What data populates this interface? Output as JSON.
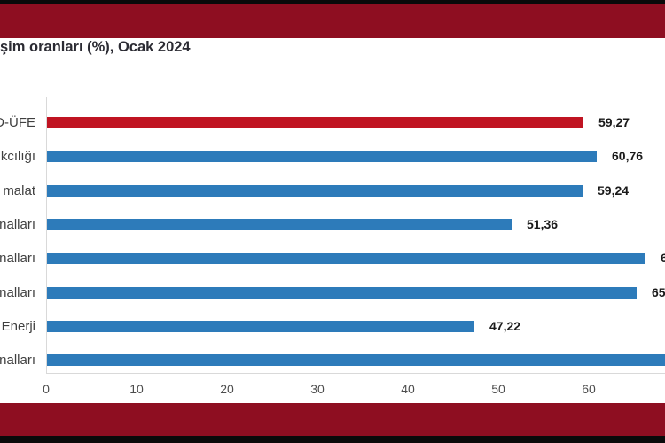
{
  "title": "şim oranları (%), Ocak 2024",
  "colors": {
    "frame_edge": "#0a0a0a",
    "header_band": "#8e0e21",
    "bar_red": "#c01422",
    "bar_blue": "#2d7bba",
    "axis_line": "#d9d9d9",
    "title_text": "#2b2b33",
    "category_text": "#3f3f3f",
    "value_text": "#1a1a1a",
    "tick_text": "#4d4d4d"
  },
  "chart_data": {
    "type": "bar",
    "orientation": "horizontal",
    "title": "şim oranları (%), Ocak 2024",
    "title_clipped_left": true,
    "x_ticks": [
      0,
      10,
      20,
      30,
      40,
      50,
      60
    ],
    "xlim_visible": [
      0,
      68.4
    ],
    "grid": false,
    "legend": false,
    "bars": [
      {
        "label": "D-ÜFE",
        "label_clipped": true,
        "value": 59.27,
        "value_label": "59,27",
        "color": "red"
      },
      {
        "label": "kcılığı",
        "label_clipped": true,
        "value": 60.76,
        "value_label": "60,76",
        "color": "blue"
      },
      {
        "label": "malat",
        "label_clipped": true,
        "value": 59.24,
        "value_label": "59,24",
        "color": "blue"
      },
      {
        "label": "nalları",
        "label_clipped": true,
        "value": 51.36,
        "value_label": "51,36",
        "color": "blue"
      },
      {
        "label": "nalları",
        "label_clipped": true,
        "value": 66.2,
        "value_label": "6",
        "color": "blue",
        "value_estimated": true,
        "value_label_clipped": true
      },
      {
        "label": "nalları",
        "label_clipped": true,
        "value": 65.2,
        "value_label": "65",
        "color": "blue",
        "value_estimated": true,
        "value_label_clipped": true
      },
      {
        "label": "Enerji",
        "label_clipped": false,
        "value": 47.22,
        "value_label": "47,22",
        "color": "blue"
      },
      {
        "label": "nalları",
        "label_clipped": true,
        "value": 69.6,
        "value_label": "",
        "color": "blue",
        "value_estimated": true,
        "bar_clipped_right": true
      }
    ]
  }
}
